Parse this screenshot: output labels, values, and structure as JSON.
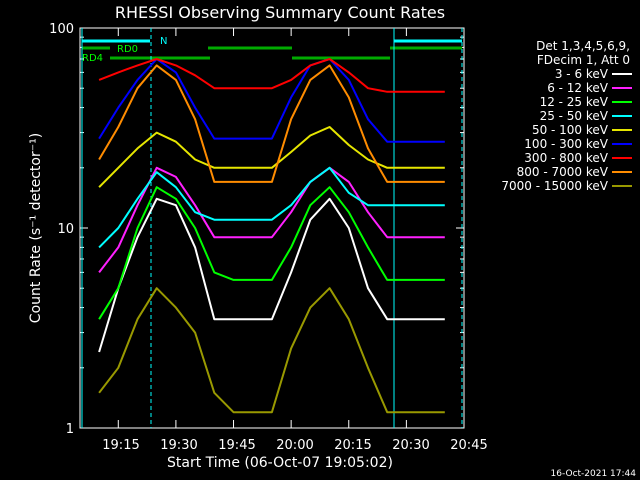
{
  "chart_data": {
    "type": "line",
    "title": "RHESSI Observing Summary Count Rates",
    "xlabel": "Start Time (06-Oct-07 19:05:02)",
    "ylabel": "Count Rate (s⁻¹ detector⁻¹)",
    "y_scale": "log",
    "ylim": [
      1,
      100
    ],
    "xlim": [
      "19:05:02",
      "20:45:00"
    ],
    "x_ticks": [
      "19:15",
      "19:30",
      "19:45",
      "20:00",
      "20:15",
      "20:30",
      "20:45"
    ],
    "y_ticks": [
      "1",
      "10",
      "100"
    ],
    "legend_header": [
      "Det 1,3,4,5,6,9,",
      "FDecim 1, Att 0"
    ],
    "legend_position": "right",
    "timestamp": "16-Oct-2021 17:44",
    "time_axis_points": [
      "19:05",
      "19:10",
      "19:15",
      "19:20",
      "19:25",
      "19:30",
      "19:35",
      "19:40",
      "19:45",
      "19:50",
      "19:55",
      "20:00",
      "20:05",
      "20:10",
      "20:15",
      "20:20",
      "20:25",
      "20:30",
      "20:35",
      "20:40",
      "20:45"
    ],
    "series": [
      {
        "name": "3 - 6 keV",
        "color": "#ffffff",
        "values": [
          null,
          2.4,
          5,
          9,
          14,
          13,
          8,
          3.5,
          3.5,
          3.5,
          3.5,
          6,
          11,
          14,
          10,
          5,
          3.5,
          3.5,
          3.5,
          3.5,
          null
        ]
      },
      {
        "name": "6 - 12 keV",
        "color": "#ff20ff",
        "values": [
          null,
          6,
          8,
          13,
          20,
          18,
          13,
          9,
          9,
          9,
          9,
          12,
          17,
          20,
          17,
          12,
          9,
          9,
          9,
          9,
          null
        ]
      },
      {
        "name": "12 - 25 keV",
        "color": "#00ff00",
        "values": [
          null,
          3.5,
          5,
          10,
          16,
          14,
          10,
          6,
          5.5,
          5.5,
          5.5,
          8,
          13,
          16,
          12,
          8,
          5.5,
          5.5,
          5.5,
          5.5,
          null
        ]
      },
      {
        "name": "25 - 50 keV",
        "color": "#00ffff",
        "values": [
          null,
          8,
          10,
          14,
          19,
          16,
          12,
          11,
          11,
          11,
          11,
          13,
          17,
          20,
          15,
          13,
          13,
          13,
          13,
          13,
          null
        ]
      },
      {
        "name": "50 - 100 keV",
        "color": "#e6e600",
        "values": [
          null,
          16,
          20,
          25,
          30,
          27,
          22,
          20,
          20,
          20,
          20,
          24,
          29,
          32,
          26,
          22,
          20,
          20,
          20,
          20,
          null
        ]
      },
      {
        "name": "100 - 300 keV",
        "color": "#0000ff",
        "values": [
          null,
          28,
          40,
          55,
          70,
          60,
          40,
          28,
          28,
          28,
          28,
          45,
          65,
          70,
          55,
          35,
          27,
          27,
          27,
          27,
          null
        ]
      },
      {
        "name": "300 - 800 keV",
        "color": "#ff0000",
        "values": [
          null,
          55,
          60,
          65,
          70,
          65,
          58,
          50,
          50,
          50,
          50,
          55,
          65,
          70,
          60,
          50,
          48,
          48,
          48,
          48,
          null
        ]
      },
      {
        "name": "800 - 7000 keV",
        "color": "#ff8c00",
        "values": [
          null,
          22,
          32,
          50,
          65,
          55,
          35,
          17,
          17,
          17,
          17,
          35,
          55,
          65,
          45,
          25,
          17,
          17,
          17,
          17,
          null
        ]
      },
      {
        "name": "7000 - 15000 keV",
        "color": "#999900",
        "values": [
          null,
          1.5,
          2,
          3.5,
          5,
          4,
          3,
          1.5,
          1.2,
          1.2,
          1.2,
          2.5,
          4,
          5,
          3.5,
          2,
          1.2,
          1.2,
          1.2,
          1.2,
          null
        ]
      }
    ],
    "annotations": [
      {
        "label": "N",
        "color": "#00ffff"
      },
      {
        "label": "RD0",
        "color": "#00ff00"
      },
      {
        "label": "RD4",
        "color": "#00ff00"
      }
    ]
  }
}
